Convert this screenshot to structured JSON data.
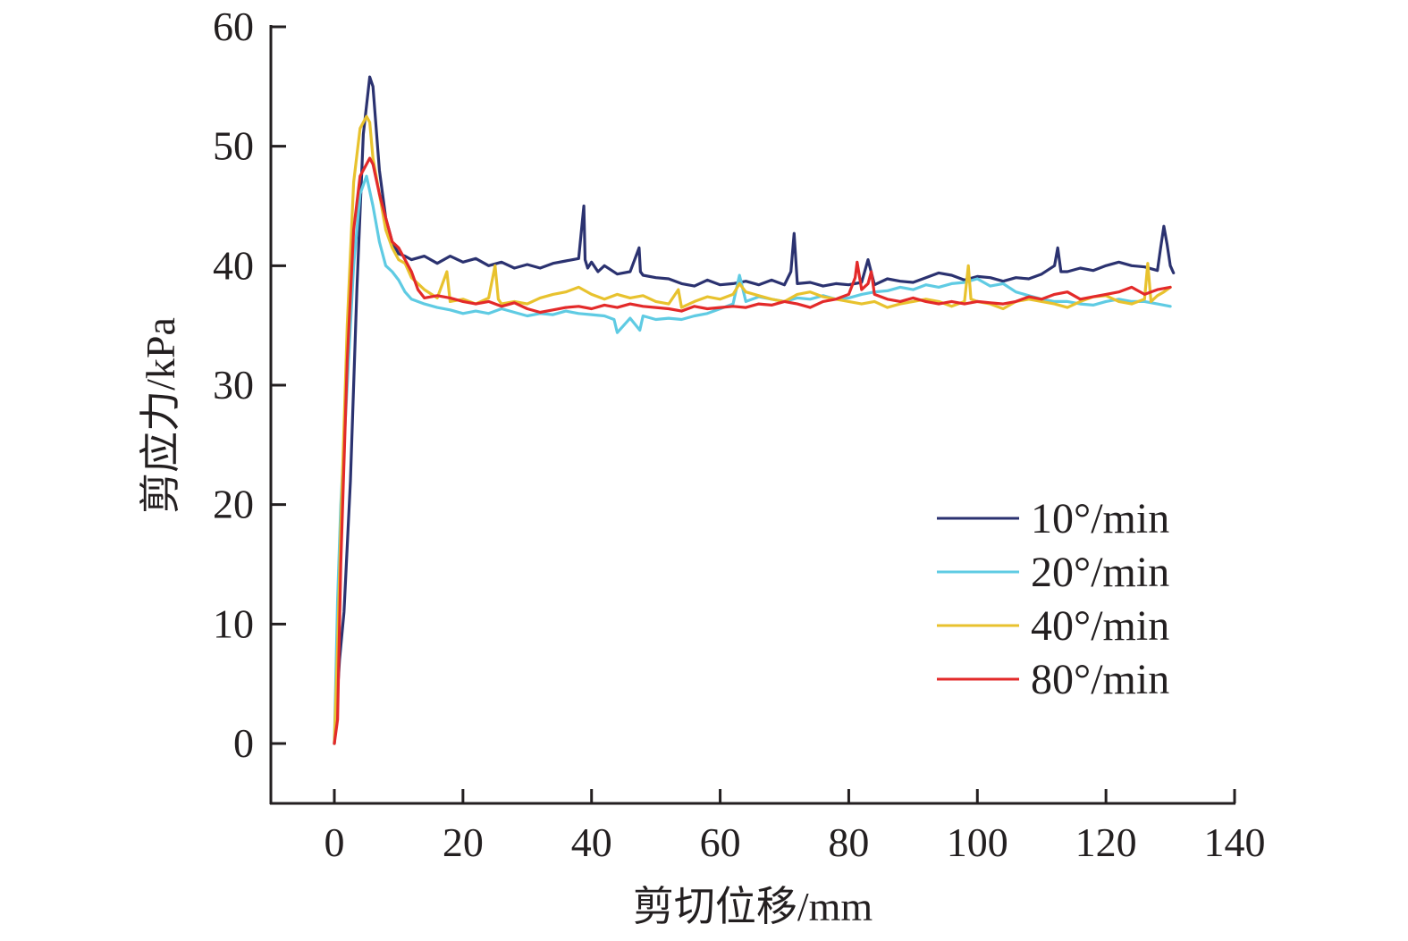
{
  "chart_data": {
    "type": "line",
    "title": "",
    "xlabel": "剪切位移/mm",
    "ylabel": "剪应力/kPa",
    "xlim": [
      -10,
      140
    ],
    "ylim": [
      -5,
      60
    ],
    "x_ticks": [
      0,
      20,
      40,
      60,
      80,
      100,
      120,
      140
    ],
    "y_ticks": [
      0,
      10,
      20,
      30,
      40,
      50,
      60
    ],
    "x_tick_labels": [
      "0",
      "20",
      "40",
      "60",
      "80",
      "100",
      "120",
      "140"
    ],
    "y_tick_labels": [
      "0",
      "10",
      "20",
      "30",
      "40",
      "50",
      "60"
    ],
    "grid": false,
    "legend_position": "center-right",
    "series": [
      {
        "name": "10°/min",
        "color": "#2b3270",
        "x": [
          0,
          0.8,
          1.5,
          2.5,
          3.5,
          4.5,
          5.5,
          6.0,
          7.0,
          8.0,
          9.0,
          10.0,
          11.0,
          12.0,
          14.0,
          16.0,
          18.0,
          20.0,
          22.0,
          24.0,
          26.0,
          28.0,
          30.0,
          32.0,
          34.0,
          36.0,
          38.0,
          38.8,
          39.0,
          39.4,
          40.0,
          41.0,
          42.0,
          44.0,
          46.0,
          47.4,
          47.6,
          48.0,
          50.0,
          52.0,
          54.0,
          56.0,
          58.0,
          60.0,
          62.0,
          64.0,
          66.0,
          68.0,
          70.0,
          71.0,
          71.5,
          72.0,
          74.0,
          76.0,
          78.0,
          80.0,
          82.0,
          83.0,
          84.0,
          86.0,
          88.0,
          90.0,
          92.0,
          94.0,
          96.0,
          98.0,
          100.0,
          102.0,
          104.0,
          106.0,
          108.0,
          110.0,
          112.0,
          112.5,
          113.0,
          114.0,
          116.0,
          118.0,
          120.0,
          122.0,
          124.0,
          126.0,
          128.0,
          128.5,
          129.0,
          129.5,
          130.0,
          130.5
        ],
        "y": [
          0,
          7,
          11,
          22,
          38,
          51,
          55.8,
          55,
          48,
          44,
          42,
          41,
          40.8,
          40.5,
          40.8,
          40.2,
          40.8,
          40.3,
          40.6,
          40.0,
          40.3,
          39.8,
          40.1,
          39.8,
          40.2,
          40.4,
          40.6,
          45.0,
          40.5,
          39.8,
          40.3,
          39.5,
          40.0,
          39.3,
          39.5,
          41.5,
          39.5,
          39.2,
          39.0,
          38.9,
          38.5,
          38.3,
          38.8,
          38.4,
          38.5,
          38.7,
          38.4,
          38.8,
          38.4,
          39.5,
          42.7,
          38.5,
          38.6,
          38.3,
          38.5,
          38.4,
          38.6,
          40.5,
          38.4,
          38.9,
          38.7,
          38.6,
          39.0,
          39.4,
          39.2,
          38.8,
          39.1,
          39.0,
          38.7,
          39.0,
          38.9,
          39.3,
          40.0,
          41.5,
          39.5,
          39.5,
          39.8,
          39.6,
          40.0,
          40.3,
          40.0,
          39.9,
          39.6,
          41.5,
          43.3,
          41.8,
          40.0,
          39.4
        ]
      },
      {
        "name": "20°/min",
        "color": "#5fcbe3",
        "x": [
          0,
          0.5,
          1.0,
          2.0,
          3.0,
          4.0,
          5.0,
          6.0,
          7.0,
          8.0,
          9.0,
          10.0,
          11.0,
          12.0,
          14.0,
          16.0,
          18.0,
          20.0,
          22.0,
          24.0,
          26.0,
          28.0,
          30.0,
          32.0,
          34.0,
          36.0,
          38.0,
          40.0,
          42.0,
          43.5,
          44.0,
          46.0,
          47.5,
          48.0,
          50.0,
          52.0,
          54.0,
          56.0,
          58.0,
          60.0,
          62.0,
          63.0,
          64.0,
          66.0,
          68.0,
          70.0,
          72.0,
          74.0,
          76.0,
          78.0,
          80.0,
          82.0,
          84.0,
          86.0,
          88.0,
          90.0,
          92.0,
          94.0,
          96.0,
          98.0,
          100.0,
          102.0,
          104.0,
          106.0,
          108.0,
          110.0,
          112.0,
          114.0,
          116.0,
          118.0,
          120.0,
          122.0,
          124.0,
          126.0,
          128.0,
          130.0
        ],
        "y": [
          0,
          12,
          20,
          30,
          40,
          46,
          47.5,
          45,
          42,
          40,
          39.5,
          38.8,
          37.8,
          37.2,
          36.8,
          36.5,
          36.3,
          36.0,
          36.2,
          36.0,
          36.4,
          36.1,
          35.8,
          36.0,
          35.9,
          36.2,
          36.0,
          35.9,
          35.8,
          35.5,
          34.4,
          35.6,
          34.6,
          35.8,
          35.5,
          35.6,
          35.5,
          35.8,
          36.0,
          36.4,
          36.8,
          39.2,
          37.0,
          37.4,
          37.2,
          37.0,
          37.3,
          37.2,
          37.5,
          37.2,
          37.3,
          37.6,
          37.8,
          37.9,
          38.2,
          38.0,
          38.4,
          38.2,
          38.5,
          38.6,
          38.9,
          38.3,
          38.5,
          37.8,
          37.5,
          37.2,
          37.0,
          37.0,
          36.8,
          36.7,
          37.0,
          37.2,
          37.0,
          37.0,
          36.8,
          36.6
        ]
      },
      {
        "name": "40°/min",
        "color": "#e8c22e",
        "x": [
          0,
          0.5,
          1.0,
          2.0,
          3.0,
          4.0,
          5.0,
          5.5,
          6.0,
          7.0,
          8.0,
          9.0,
          10.0,
          11.0,
          12.0,
          14.0,
          16.0,
          17.5,
          18.0,
          20.0,
          22.0,
          24.0,
          25.0,
          25.5,
          26.0,
          28.0,
          30.0,
          32.0,
          34.0,
          36.0,
          38.0,
          40.0,
          42.0,
          44.0,
          46.0,
          48.0,
          50.0,
          52.0,
          53.5,
          54.0,
          56.0,
          58.0,
          60.0,
          62.0,
          63.0,
          64.0,
          66.0,
          68.0,
          70.0,
          72.0,
          74.0,
          76.0,
          78.0,
          80.0,
          82.0,
          84.0,
          86.0,
          88.0,
          90.0,
          92.0,
          94.0,
          96.0,
          98.0,
          98.6,
          99.0,
          100.0,
          102.0,
          104.0,
          106.0,
          108.0,
          110.0,
          112.0,
          114.0,
          116.0,
          118.0,
          120.0,
          122.0,
          124.0,
          126.0,
          126.5,
          127.0,
          128.0,
          129.0,
          130.0
        ],
        "y": [
          0,
          8,
          18,
          35,
          47,
          51.5,
          52.5,
          52,
          49,
          46,
          43,
          41.5,
          40.5,
          40.2,
          39.0,
          38.0,
          37.3,
          39.5,
          37.0,
          37.2,
          36.8,
          37.3,
          40.0,
          37.2,
          36.8,
          37.0,
          36.8,
          37.3,
          37.6,
          37.8,
          38.2,
          37.6,
          37.2,
          37.6,
          37.3,
          37.5,
          37.0,
          36.8,
          38.0,
          36.5,
          37.0,
          37.4,
          37.2,
          37.6,
          38.5,
          37.8,
          37.5,
          37.2,
          37.0,
          37.6,
          37.8,
          37.4,
          37.2,
          37.0,
          36.8,
          37.0,
          36.5,
          36.8,
          37.0,
          37.2,
          37.0,
          36.6,
          37.0,
          40.0,
          37.2,
          37.0,
          36.8,
          36.4,
          37.0,
          37.2,
          37.0,
          36.8,
          36.5,
          37.0,
          37.4,
          37.5,
          37.0,
          36.8,
          37.2,
          40.2,
          37.0,
          37.5,
          37.8,
          38.2
        ]
      },
      {
        "name": "80°/min",
        "color": "#e32a2a",
        "x": [
          0,
          0.5,
          1.0,
          2.0,
          3.0,
          4.0,
          5.0,
          5.5,
          6.0,
          7.0,
          8.0,
          9.0,
          10.0,
          11.0,
          12.0,
          13.0,
          14.0,
          16.0,
          18.0,
          20.0,
          22.0,
          24.0,
          26.0,
          28.0,
          30.0,
          32.0,
          34.0,
          36.0,
          38.0,
          40.0,
          42.0,
          44.0,
          46.0,
          48.0,
          50.0,
          52.0,
          54.0,
          56.0,
          58.0,
          60.0,
          62.0,
          64.0,
          66.0,
          68.0,
          70.0,
          72.0,
          74.0,
          76.0,
          78.0,
          80.0,
          81.0,
          81.3,
          82.0,
          83.0,
          83.5,
          84.0,
          86.0,
          88.0,
          90.0,
          92.0,
          94.0,
          96.0,
          98.0,
          100.0,
          102.0,
          104.0,
          106.0,
          108.0,
          110.0,
          112.0,
          114.0,
          116.0,
          118.0,
          120.0,
          122.0,
          124.0,
          126.0,
          128.0,
          130.0
        ],
        "y": [
          0,
          2,
          15,
          32,
          43,
          47.5,
          48.5,
          49,
          48.5,
          46,
          44,
          42,
          41.5,
          40.5,
          39.5,
          38.0,
          37.3,
          37.5,
          37.3,
          37.0,
          36.8,
          37.0,
          36.6,
          36.9,
          36.4,
          36.1,
          36.3,
          36.5,
          36.6,
          36.4,
          36.7,
          36.5,
          36.8,
          36.6,
          36.5,
          36.4,
          36.2,
          36.6,
          36.4,
          36.5,
          36.6,
          36.5,
          36.8,
          36.7,
          37.0,
          36.8,
          36.5,
          37.0,
          37.2,
          37.6,
          39.0,
          40.3,
          38.0,
          38.5,
          39.5,
          37.6,
          37.2,
          37.0,
          37.3,
          37.0,
          36.8,
          37.0,
          36.8,
          37.0,
          36.9,
          36.8,
          37.0,
          37.4,
          37.2,
          37.6,
          37.8,
          37.2,
          37.4,
          37.6,
          37.8,
          38.2,
          37.6,
          38.0,
          38.2
        ]
      }
    ]
  }
}
